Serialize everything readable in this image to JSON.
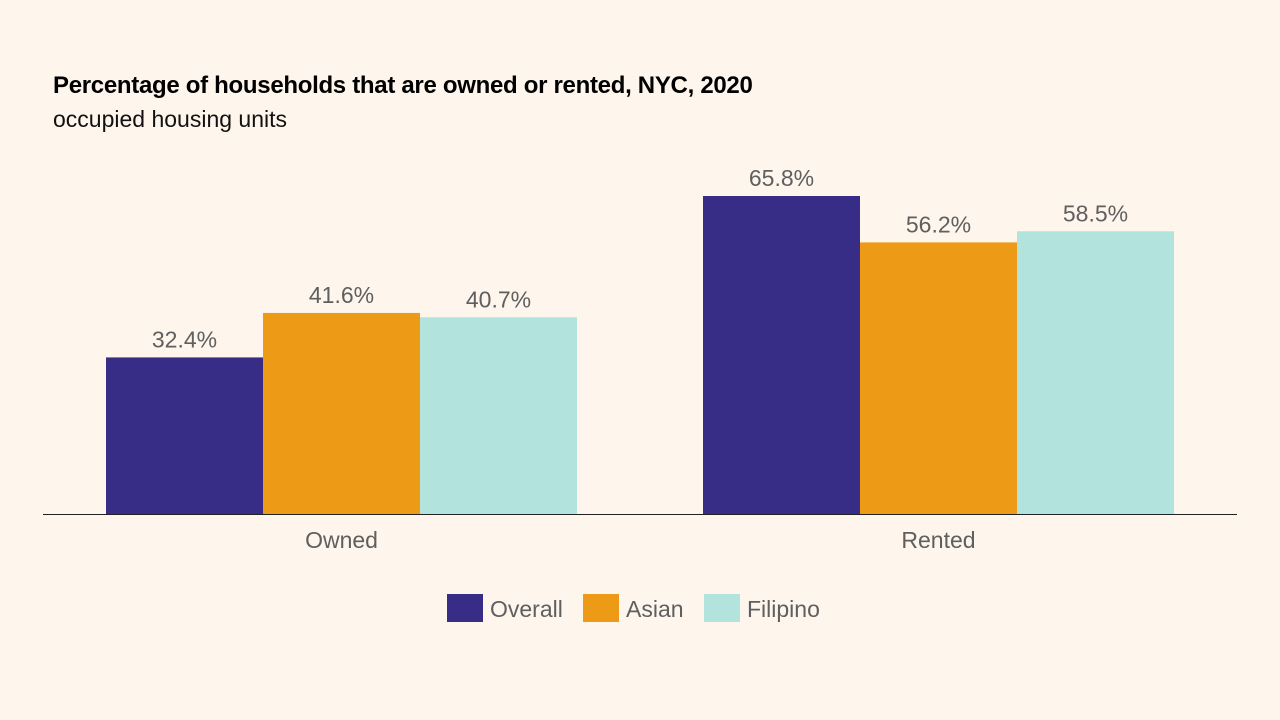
{
  "chart_data": {
    "type": "bar",
    "title": "Percentage of households that are owned or rented, NYC, 2020",
    "subtitle": "occupied housing units",
    "categories": [
      "Owned",
      "Rented"
    ],
    "series": [
      {
        "name": "Overall",
        "color": "#372D87",
        "values": [
          32.4,
          65.8
        ],
        "labels": [
          "32.4%",
          "65.8%"
        ]
      },
      {
        "name": "Asian",
        "color": "#ED9A16",
        "values": [
          41.6,
          56.2
        ],
        "labels": [
          "41.6%",
          "56.2%"
        ]
      },
      {
        "name": "Filipino",
        "color": "#B2E3DC",
        "values": [
          40.7,
          58.5
        ],
        "labels": [
          "40.7%",
          "58.5%"
        ]
      }
    ],
    "ylim": [
      0,
      70
    ],
    "grid": false,
    "legend": "bottom",
    "background": "#FEF5EC"
  }
}
